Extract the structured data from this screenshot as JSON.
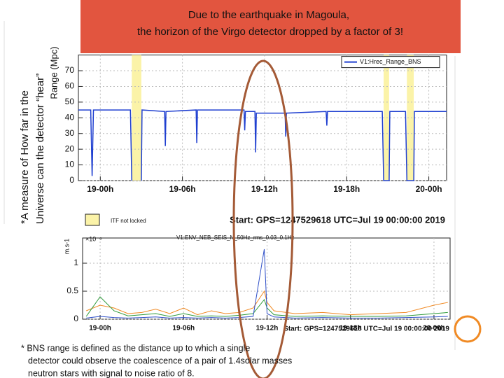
{
  "slide": {
    "callout": "Due to the earthquake in Magoula, the horizon of the Virgo detector dropped by a factor of 3!",
    "side_label": "*A measure of How far in the Universe can the detector “hear”",
    "footnote": [
      "* BNS range is defined as the distance up to which a single",
      "detector could observe the coalescence of a pair of 1.4solar masses",
      "neutron stars with signal to noise ratio of 8."
    ]
  },
  "chart_data": [
    {
      "type": "line",
      "y_label": "Range (Mpc)",
      "x": [
        -1.6,
        -0.7,
        -0.6,
        -0.5,
        2.2,
        2.3,
        2.65,
        3.0,
        3.05,
        4.7,
        4.75,
        4.8,
        7.0,
        7.05,
        7.1,
        10.5,
        10.55,
        10.6,
        11.3,
        11.35,
        11.4,
        13.5,
        13.55,
        13.6,
        16.5,
        16.55,
        16.6,
        20.6,
        20.7,
        21.1,
        21.15,
        22.3,
        22.4,
        22.9,
        22.95,
        25.3
      ],
      "series": [
        {
          "name": "V1:Hrec_Range_BNS",
          "color": "#1f3fd0",
          "values": [
            45,
            45,
            3,
            45,
            45,
            0,
            null,
            0,
            45,
            44,
            22,
            44,
            45,
            24,
            45,
            45,
            32,
            44,
            44,
            18,
            43,
            43,
            28,
            43,
            44,
            35,
            44,
            44,
            0,
            0,
            44,
            44,
            0,
            0,
            44,
            44
          ]
        }
      ],
      "shaded_regions": [
        [
          2.3,
          3.0
        ],
        [
          20.7,
          21.1
        ],
        [
          22.4,
          22.9
        ]
      ],
      "shaded_color": "#fbf3a8",
      "shaded_label": "ITF not locked",
      "annotation": "Start: GPS=1247529618 UTC=Jul 19 00:00:00 2019",
      "xlim": [
        -1.6,
        25.3
      ],
      "ylim": [
        0,
        80
      ],
      "xticks": [
        {
          "value": 0,
          "label": "19-00h"
        },
        {
          "value": 6,
          "label": "19-06h"
        },
        {
          "value": 12,
          "label": "19-12h"
        },
        {
          "value": 18,
          "label": "19-18h"
        },
        {
          "value": 24,
          "label": "20-00h"
        }
      ],
      "yticks": [
        0,
        10,
        20,
        30,
        40,
        50,
        60,
        70
      ],
      "grid": true
    },
    {
      "type": "line",
      "y_label": "m.s-1",
      "title": "V1:ENV_NEB_SEIS_N_50Hz_rms_0.03_0.1Hz",
      "y_multiplier": "×10⁻⁶",
      "x": [
        -1,
        0,
        1,
        2,
        3,
        4,
        5,
        6,
        7,
        8,
        9,
        10,
        11,
        11.8,
        12,
        12.5,
        14,
        16,
        18,
        20,
        22,
        24,
        25
      ],
      "series": [
        {
          "color": "#f08a24",
          "values": [
            0.15,
            0.25,
            0.2,
            0.1,
            0.12,
            0.18,
            0.1,
            0.2,
            0.08,
            0.15,
            0.1,
            0.12,
            0.2,
            0.5,
            0.3,
            0.15,
            0.1,
            0.12,
            0.08,
            0.1,
            0.12,
            0.25,
            0.3
          ]
        },
        {
          "color": "#2e9a3a",
          "values": [
            0.05,
            0.4,
            0.15,
            0.06,
            0.08,
            0.1,
            0.05,
            0.1,
            0.05,
            0.06,
            0.05,
            0.07,
            0.1,
            0.35,
            0.2,
            0.08,
            0.05,
            0.06,
            0.05,
            0.05,
            0.06,
            0.1,
            0.12
          ]
        },
        {
          "color": "#3050c8",
          "values": [
            0.02,
            0.05,
            0.03,
            0.02,
            0.03,
            0.04,
            0.02,
            0.03,
            0.02,
            0.03,
            0.02,
            0.03,
            0.05,
            1.25,
            0.1,
            0.04,
            0.02,
            0.03,
            0.02,
            0.02,
            0.03,
            0.04,
            0.05
          ]
        }
      ],
      "annotation": "Start: GPS=1247529618 UTC=Jul 19 00:00:00 2019",
      "xlim": [
        -1.26,
        25.16
      ],
      "ylim": [
        0,
        1.45
      ],
      "xticks": [
        {
          "value": 0,
          "label": "19-00h"
        },
        {
          "value": 6,
          "label": "19-06h"
        },
        {
          "value": 12,
          "label": "19-12h"
        },
        {
          "value": 18,
          "label": "19-18h"
        },
        {
          "value": 24,
          "label": "20-00h"
        }
      ],
      "yticks": [
        0,
        0.5,
        1
      ],
      "grid": true
    }
  ]
}
